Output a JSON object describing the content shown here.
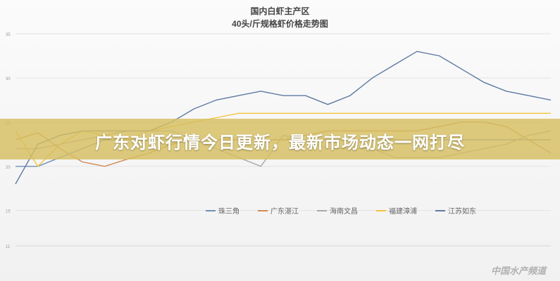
{
  "header": {
    "title_line1": "国内白虾主产区",
    "title_line2": "40头/斤规格虾价格走势图"
  },
  "banner": {
    "headline": "广东对虾行情今日更新，最新市场动态一网打尽"
  },
  "watermark": {
    "text": "中国水产频道"
  },
  "chart_data": {
    "type": "line",
    "title": "国内白虾主产区 40头/斤规格虾价格走势图",
    "ylim": [
      11,
      35
    ],
    "yticks": [
      11,
      15,
      20,
      25,
      30,
      35
    ],
    "grid": true,
    "legend_position": "bottom-center",
    "n_points": 25,
    "series": [
      {
        "name": "珠三角",
        "color": "#6f8fb6",
        "values": [
          20,
          20,
          21,
          22,
          23,
          23,
          23,
          23,
          23,
          23,
          23,
          23,
          23,
          23,
          23,
          23,
          23,
          23,
          23,
          23,
          23,
          23,
          23,
          23,
          23
        ]
      },
      {
        "name": "广东湛江",
        "color": "#d08a55",
        "values": [
          23,
          23.8,
          22,
          20.5,
          20,
          20.8,
          21.5,
          22.5,
          23,
          23,
          23,
          23,
          23,
          23.5,
          24,
          24,
          24,
          24,
          24,
          24.5,
          25,
          25,
          24.5,
          23,
          21.5
        ]
      },
      {
        "name": "海南文昌",
        "color": "#a8a8a8",
        "values": [
          22,
          22,
          22.5,
          23,
          23.5,
          24,
          24,
          24,
          23,
          22,
          21,
          20,
          23.5,
          23,
          22,
          22,
          22,
          21,
          21,
          21,
          21.5,
          22,
          22.5,
          23.5,
          24
        ]
      },
      {
        "name": "福建漳浦",
        "color": "#f3c33b",
        "values": [
          24,
          20,
          22.5,
          24,
          23.5,
          23,
          24,
          24.5,
          25,
          25.5,
          26,
          26,
          26,
          26,
          26,
          26,
          26,
          26,
          26,
          26,
          26,
          26,
          26,
          26,
          26
        ]
      },
      {
        "name": "江苏如东",
        "color": "#5d7aa3",
        "values": [
          18,
          22.5,
          23.5,
          24,
          24,
          24,
          24,
          25,
          26.5,
          27.5,
          28,
          28.5,
          28,
          28,
          27,
          28,
          30,
          31.5,
          33,
          32.5,
          31,
          29.5,
          28.5,
          28,
          27.5
        ]
      }
    ]
  }
}
